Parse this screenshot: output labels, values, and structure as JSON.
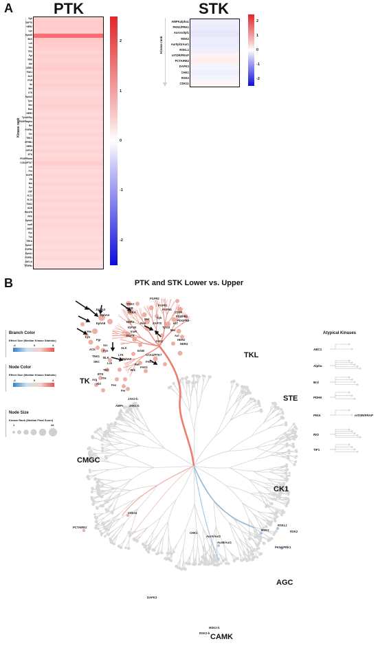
{
  "panel_a": {
    "letter": "A",
    "ptk": {
      "title": "PTK",
      "axis_label": "Kinase rank",
      "rows": [
        {
          "name": "Syk",
          "v": 0.55
        },
        {
          "name": "ZAP70",
          "v": 0.6
        },
        {
          "name": "HER2",
          "v": 0.6
        },
        {
          "name": "Lyn",
          "v": 0.55
        },
        {
          "name": "EphA8",
          "v": 1.7
        },
        {
          "name": "BLK",
          "v": 0.65
        },
        {
          "name": "Lck",
          "v": 0.6
        },
        {
          "name": "Yes",
          "v": 0.55
        },
        {
          "name": "TEC",
          "v": 0.5
        },
        {
          "name": "Fgr",
          "v": 0.55
        },
        {
          "name": "FRK",
          "v": 0.5
        },
        {
          "name": "Abl",
          "v": 0.55
        },
        {
          "name": "DDR1",
          "v": 0.6
        },
        {
          "name": "FAK1",
          "v": 0.5
        },
        {
          "name": "ALK",
          "v": 0.55
        },
        {
          "name": "FGR",
          "v": 0.5
        },
        {
          "name": "Itk",
          "v": 0.55
        },
        {
          "name": "Met",
          "v": 0.5
        },
        {
          "name": "LTK",
          "v": 0.45
        },
        {
          "name": "EphA3",
          "v": 0.5
        },
        {
          "name": "Tyro",
          "v": 0.5
        },
        {
          "name": "Mer",
          "v": 0.55
        },
        {
          "name": "Ron",
          "v": 0.5
        },
        {
          "name": "HER3",
          "v": 0.45
        },
        {
          "name": "Tyro3/Sky",
          "v": 0.5
        },
        {
          "name": "PDGFRalpha",
          "v": 0.45
        },
        {
          "name": "Ret",
          "v": 0.5
        },
        {
          "name": "FGFRs",
          "v": 0.45
        },
        {
          "name": "Src",
          "v": 0.5
        },
        {
          "name": "TRKC",
          "v": 0.45
        },
        {
          "name": "EPHB1",
          "v": 0.5
        },
        {
          "name": "HER4",
          "v": 0.45
        },
        {
          "name": "IGF1R",
          "v": 0.5
        },
        {
          "name": "ETK",
          "v": 0.45
        },
        {
          "name": "PDGFRbeta",
          "v": 0.5
        },
        {
          "name": "CCK4/PTK7",
          "v": 0.6
        },
        {
          "name": "Lck",
          "v": 0.5
        },
        {
          "name": "Fes",
          "v": 0.45
        },
        {
          "name": "EGFR",
          "v": 0.5
        },
        {
          "name": "Eit",
          "v": 0.45
        },
        {
          "name": "Brk",
          "v": 0.5
        },
        {
          "name": "Fer",
          "v": 0.45
        },
        {
          "name": "CSF",
          "v": 0.5
        },
        {
          "name": "FLT1",
          "v": 0.45
        },
        {
          "name": "FLT3",
          "v": 0.5
        },
        {
          "name": "FAK2",
          "v": 0.45
        },
        {
          "name": "KDR",
          "v": 0.5
        },
        {
          "name": "PDGFR",
          "v": 0.45
        },
        {
          "name": "RYK",
          "v": 0.5
        },
        {
          "name": "EphA6",
          "v": 0.45
        },
        {
          "name": "InsR",
          "v": 0.5
        },
        {
          "name": "JAK3",
          "v": 0.45
        },
        {
          "name": "Fyn",
          "v": 0.45
        },
        {
          "name": "Txk",
          "v": 0.4
        },
        {
          "name": "TRKA",
          "v": 0.45
        },
        {
          "name": "EphA7",
          "v": 0.4
        },
        {
          "name": "FGFR4",
          "v": 0.45
        },
        {
          "name": "EphA1",
          "v": 0.4
        },
        {
          "name": "FGFR1",
          "v": 0.45
        },
        {
          "name": "JAK1-b",
          "v": 0.35
        },
        {
          "name": "FGFRs",
          "v": 0.4
        }
      ],
      "scale_ticks": [
        "2",
        "1",
        "0",
        "-1",
        "-2"
      ]
    },
    "stk": {
      "title": "STK",
      "axis_label": "Kinase rank",
      "rows": [
        {
          "name": "AMPKalpha1",
          "v": -0.15
        },
        {
          "name": "PKN1/PRK1",
          "v": -0.2
        },
        {
          "name": "Aurora/Ipl1",
          "v": -0.25
        },
        {
          "name": "MSK2",
          "v": -0.2
        },
        {
          "name": "Aur/Ipl1/Aur1",
          "v": -0.2
        },
        {
          "name": "RSKL1",
          "v": -0.15
        },
        {
          "name": "mTOR/FRAP",
          "v": 0.15
        },
        {
          "name": "PCTAIRE2",
          "v": 0.2
        },
        {
          "name": "DAPK3",
          "v": -0.1
        },
        {
          "name": "CHK1",
          "v": -0.15
        },
        {
          "name": "RSK2",
          "v": -0.1
        },
        {
          "name": "CDK11",
          "v": 0.1
        }
      ],
      "scale_ticks": [
        "2",
        "1",
        "0",
        "-1",
        "-2"
      ]
    }
  },
  "panel_b": {
    "letter": "B",
    "title": "PTK and STK Lower vs. Upper",
    "legend": {
      "branch_color_title": "Branch Color",
      "branch_color_sub": "Effect Size (Median Kinase Statistic)",
      "branch_ticks": [
        "-4",
        "0",
        "4"
      ],
      "node_color_title": "Node Color",
      "node_color_sub": "Effect Size (Median Kinase Statistic)",
      "node_ticks": [
        "-4",
        "0",
        "4"
      ],
      "node_size_title": "Node Size",
      "node_size_sub": "Kinase Rank (Median Final Score)",
      "node_size_ticks": [
        "1",
        "44"
      ]
    },
    "groups": [
      "TK",
      "TKL",
      "STE",
      "CMGC",
      "CK1",
      "AGC",
      "CAMK"
    ],
    "atypical": {
      "title": "Atypical Kinases",
      "items": [
        "ABC1",
        "Alpha",
        "Brd",
        "PDHK",
        "PIKK",
        "RIO",
        "TIF1"
      ],
      "pikk_label": "mTOR/FRAP"
    },
    "tk_labels": [
      "TRKC",
      "TRKB",
      "TRKA",
      "FGFR2",
      "FGFR1",
      "FGFR4",
      "CSFR",
      "PDGFRa",
      "PDGFRb",
      "KIT",
      "EphA3",
      "EphA4",
      "EphA8",
      "DDR1",
      "IGF1R",
      "InsR",
      "Ron",
      "Met",
      "Yes",
      "Lyn",
      "Fgr",
      "Src",
      "Fyn",
      "BLK",
      "Lck",
      "Syk",
      "ZAP70",
      "Tyro3",
      "Mer",
      "Axl",
      "HER2",
      "HER4",
      "EGFR",
      "JAK2",
      "ErbB",
      "CCK4/PTK7",
      "ALK",
      "LTK",
      "FAK1",
      "FAK2",
      "TEC",
      "BTK",
      "ITK",
      "Fes",
      "Fer",
      "Abl",
      "Arg",
      "JAK2-b",
      "JAK1-b",
      "AMPs",
      "EphA2",
      "Ret",
      "Brk",
      "ACK",
      "TNK1",
      "SRC"
    ],
    "other_labels": {
      "cdk11": "CDK11",
      "pctaire2": "PCTAIRE2",
      "chk1": "CHK1",
      "aur1": "AurA/Aur2",
      "aur2": "AurB/Aur1",
      "rskl1": "RSKL1",
      "msk2": "MSK2",
      "rsk2": "RSK2",
      "pkn1": "PKN1/PRK1",
      "dapk3": "DAPK3",
      "msk2b": "MSK2-b",
      "rsk2b": "RSK2-b"
    }
  }
}
